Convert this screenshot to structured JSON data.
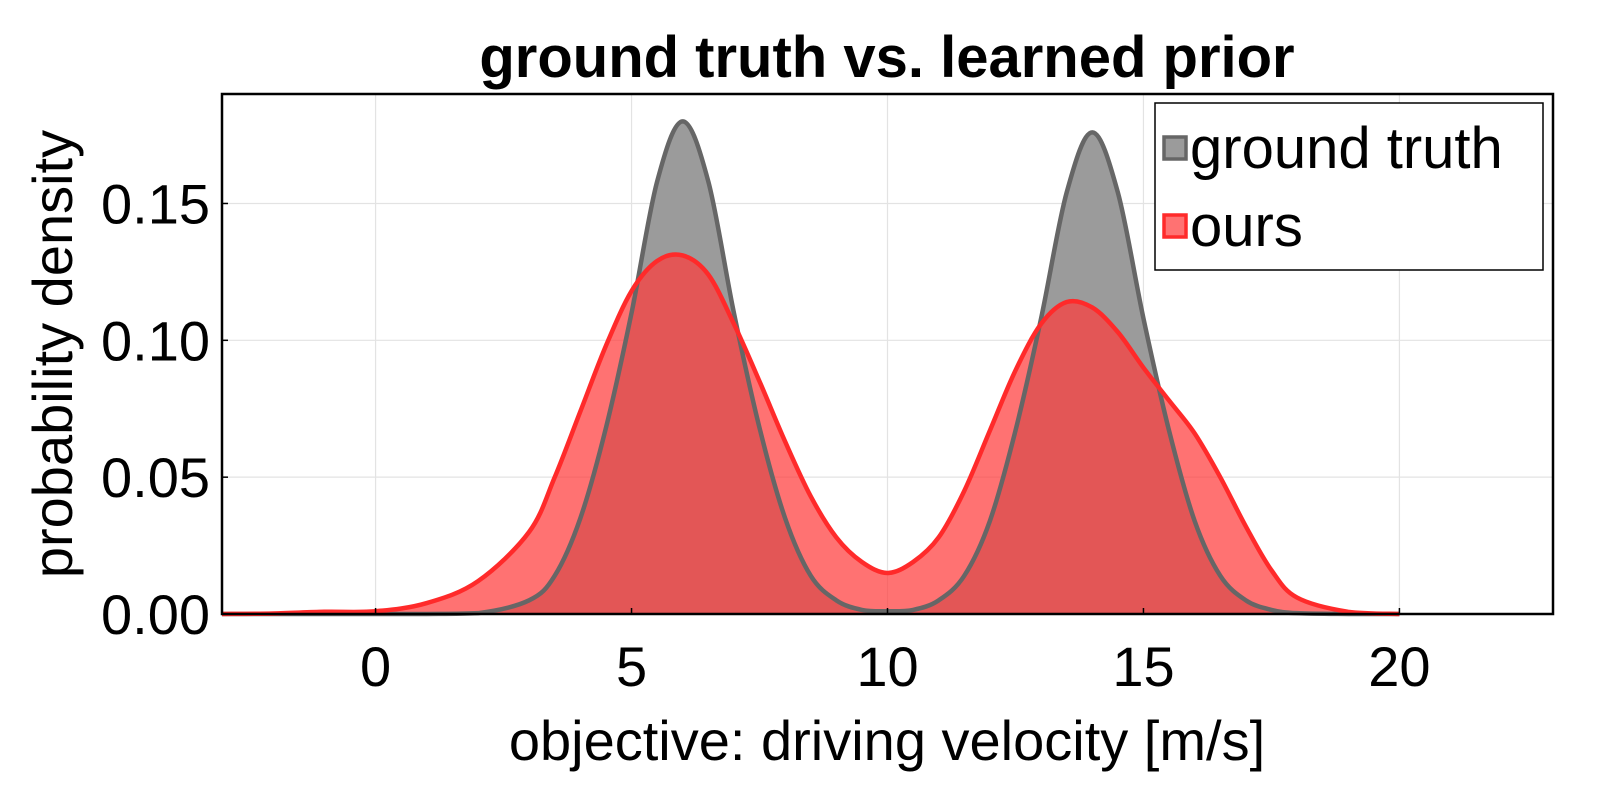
{
  "chart_data": {
    "type": "area",
    "title": "ground truth vs. learned prior",
    "xlabel": "objective: driving velocity [m/s]",
    "ylabel": "probability density",
    "xlim": [
      -3,
      23
    ],
    "ylim": [
      0,
      0.19
    ],
    "xticks": [
      0,
      5,
      10,
      15,
      20
    ],
    "xtick_labels": [
      "0",
      "5",
      "10",
      "15",
      "20"
    ],
    "yticks": [
      0,
      0.05,
      0.1,
      0.15
    ],
    "ytick_labels": [
      "0.00",
      "0.05",
      "0.10",
      "0.15"
    ],
    "grid": true,
    "legend_position": "top-right",
    "x": [
      -3,
      -2,
      -1,
      0,
      1,
      2,
      3,
      3.5,
      4,
      4.5,
      5,
      5.5,
      6,
      6.5,
      7,
      7.5,
      8,
      8.5,
      9,
      9.5,
      10,
      10.5,
      11,
      11.5,
      12,
      12.5,
      13,
      13.5,
      14,
      14.5,
      15,
      15.5,
      16,
      16.5,
      17,
      17.5,
      18,
      19,
      20
    ],
    "series": [
      {
        "name": "ground truth",
        "color": "#9b9b9b",
        "line_color": "#666666",
        "values": [
          0,
          0,
          0,
          0,
          0,
          0.0003,
          0.005,
          0.014,
          0.035,
          0.068,
          0.11,
          0.158,
          0.18,
          0.158,
          0.11,
          0.068,
          0.035,
          0.014,
          0.005,
          0.0015,
          0.001,
          0.0015,
          0.005,
          0.014,
          0.034,
          0.067,
          0.108,
          0.154,
          0.176,
          0.154,
          0.108,
          0.067,
          0.034,
          0.014,
          0.005,
          0.0015,
          0.0003,
          0,
          0
        ]
      },
      {
        "name": "ours",
        "color": "#ff3b3b",
        "line_color": "#ff2a2a",
        "values": [
          0,
          0.0002,
          0.0008,
          0.001,
          0.004,
          0.012,
          0.03,
          0.05,
          0.074,
          0.098,
          0.118,
          0.129,
          0.131,
          0.124,
          0.106,
          0.085,
          0.063,
          0.043,
          0.028,
          0.019,
          0.015,
          0.019,
          0.028,
          0.045,
          0.067,
          0.089,
          0.106,
          0.114,
          0.112,
          0.103,
          0.09,
          0.078,
          0.066,
          0.05,
          0.032,
          0.016,
          0.006,
          0.0008,
          0
        ]
      }
    ]
  }
}
